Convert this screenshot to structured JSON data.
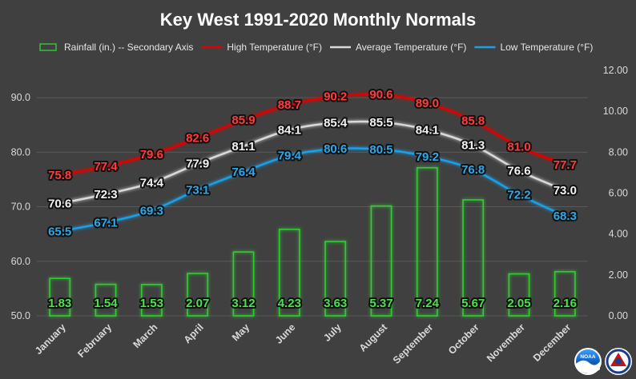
{
  "chart_data": {
    "type": "bar+line",
    "title": "Key West 1991-2020 Monthly Normals",
    "legend_position": "top",
    "grid": true,
    "categories": [
      "January",
      "February",
      "March",
      "April",
      "May",
      "June",
      "July",
      "August",
      "September",
      "October",
      "November",
      "December"
    ],
    "primary_axis": {
      "ylim": [
        50,
        95
      ],
      "ticks": [
        "50.0",
        "60.0",
        "70.0",
        "80.0",
        "90.0"
      ]
    },
    "secondary_axis": {
      "ylim": [
        0,
        12
      ],
      "ticks": [
        "0.00",
        "2.00",
        "4.00",
        "6.00",
        "8.00",
        "10.00",
        "12.00"
      ]
    },
    "series": [
      {
        "key": "rain",
        "name": "Rainfall (in.) -- Secondary Axis",
        "type": "bar",
        "axis": "secondary",
        "color": "#33cc33",
        "values": [
          1.83,
          1.54,
          1.53,
          2.07,
          3.12,
          4.23,
          3.63,
          5.37,
          7.24,
          5.67,
          2.05,
          2.16
        ],
        "labels": [
          "1.83",
          "1.54",
          "1.53",
          "2.07",
          "3.12",
          "4.23",
          "3.63",
          "5.37",
          "7.24",
          "5.67",
          "2.05",
          "2.16"
        ]
      },
      {
        "key": "high",
        "name": "High Temperature (°F)",
        "type": "line",
        "axis": "primary",
        "color": "#e00000",
        "values": [
          75.8,
          77.4,
          79.6,
          82.6,
          85.9,
          88.7,
          90.2,
          90.6,
          89.0,
          85.8,
          81.0,
          77.7
        ],
        "labels": [
          "75.8",
          "77.4",
          "79.6",
          "82.6",
          "85.9",
          "88.7",
          "90.2",
          "90.6",
          "89.0",
          "85.8",
          "81.0",
          "77.7"
        ]
      },
      {
        "key": "avg",
        "name": "Average Temperature (°F)",
        "type": "line",
        "axis": "primary",
        "color": "#d9d9d9",
        "values": [
          70.6,
          72.3,
          74.4,
          77.9,
          81.1,
          84.1,
          85.4,
          85.5,
          84.1,
          81.3,
          76.6,
          73.0
        ],
        "labels": [
          "70.6",
          "72.3",
          "74.4",
          "77.9",
          "81.1",
          "84.1",
          "85.4",
          "85.5",
          "84.1",
          "81.3",
          "76.6",
          "73.0"
        ]
      },
      {
        "key": "low",
        "name": "Low Temperature (°F)",
        "type": "line",
        "axis": "primary",
        "color": "#1e9fe6",
        "values": [
          65.5,
          67.1,
          69.3,
          73.1,
          76.4,
          79.4,
          80.6,
          80.5,
          79.2,
          76.8,
          72.2,
          68.3
        ],
        "labels": [
          "65.5",
          "67.1",
          "69.3",
          "73.1",
          "76.4",
          "79.4",
          "80.6",
          "80.5",
          "79.2",
          "76.8",
          "72.2",
          "68.3"
        ]
      }
    ]
  },
  "logos": [
    {
      "name": "noaa-logo",
      "text": "NOAA"
    },
    {
      "name": "nws-logo",
      "text": "NATIONAL WEATHER SERVICE"
    }
  ]
}
